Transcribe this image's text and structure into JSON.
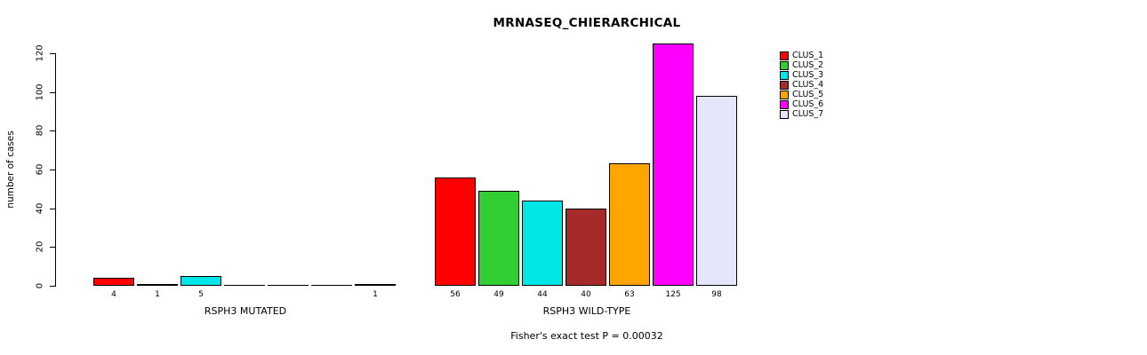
{
  "title": "MRNASEQ_CHIERARCHICAL",
  "footer": "Fisher's exact test P = 0.00032",
  "y_axis": {
    "label": "number of cases",
    "ticks": [
      0,
      20,
      40,
      60,
      80,
      100,
      120
    ]
  },
  "chart_data": {
    "type": "bar",
    "title": "MRNASEQ_CHIERARCHICAL",
    "xlabel": "",
    "ylabel": "number of cases",
    "ylim": [
      0,
      125
    ],
    "yticks": [
      0,
      20,
      40,
      60,
      80,
      100,
      120
    ],
    "grid": false,
    "legend_position": "top-right",
    "clusters": [
      {
        "label": "CLUS_1",
        "color": "#FF0000"
      },
      {
        "label": "CLUS_2",
        "color": "#32CD32"
      },
      {
        "label": "CLUS_3",
        "color": "#00E5E5"
      },
      {
        "label": "CLUS_4",
        "color": "#A52A2A"
      },
      {
        "label": "CLUS_5",
        "color": "#FFA500"
      },
      {
        "label": "CLUS_6",
        "color": "#FF00FF"
      },
      {
        "label": "CLUS_7",
        "color": "#E6E6FA"
      }
    ],
    "groups": [
      {
        "label": "RSPH3 MUTATED",
        "categories": [
          "CLUS_1",
          "CLUS_2",
          "CLUS_3",
          "CLUS_4",
          "CLUS_5",
          "CLUS_6",
          "CLUS_7"
        ],
        "values": [
          4,
          1,
          5,
          0,
          0,
          0,
          1
        ],
        "bar_labels": [
          "4",
          "1",
          "5",
          "",
          "",
          "",
          "1"
        ]
      },
      {
        "label": "RSPH3 WILD-TYPE",
        "categories": [
          "CLUS_1",
          "CLUS_2",
          "CLUS_3",
          "CLUS_4",
          "CLUS_5",
          "CLUS_6",
          "CLUS_7"
        ],
        "values": [
          56,
          49,
          44,
          40,
          63,
          125,
          98
        ],
        "bar_labels": [
          "56",
          "49",
          "44",
          "40",
          "63",
          "125",
          "98"
        ]
      }
    ],
    "annotation": "Fisher's exact test P = 0.00032"
  }
}
